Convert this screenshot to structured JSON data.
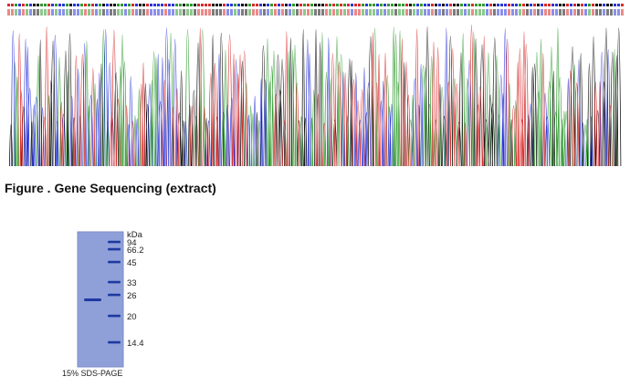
{
  "sequencing": {
    "base_colors": {
      "A": "#2e9a2e",
      "C": "#2a35d8",
      "G": "#111111",
      "T": "#d82a2a"
    }
  },
  "figure_caption": "Figure . Gene Sequencing (extract)",
  "gel": {
    "unit_label": "kDa",
    "markers": [
      {
        "label": "94",
        "kda": 94
      },
      {
        "label": "66.2",
        "kda": 66.2
      },
      {
        "label": "45",
        "kda": 45
      },
      {
        "label": "33",
        "kda": 33
      },
      {
        "label": "26",
        "kda": 26
      },
      {
        "label": "20",
        "kda": 20
      },
      {
        "label": "14.4",
        "kda": 14.4
      }
    ],
    "caption": "15% SDS-PAGE",
    "gel_color": "#8f9fd8",
    "band_color": "#1d3aa0"
  }
}
